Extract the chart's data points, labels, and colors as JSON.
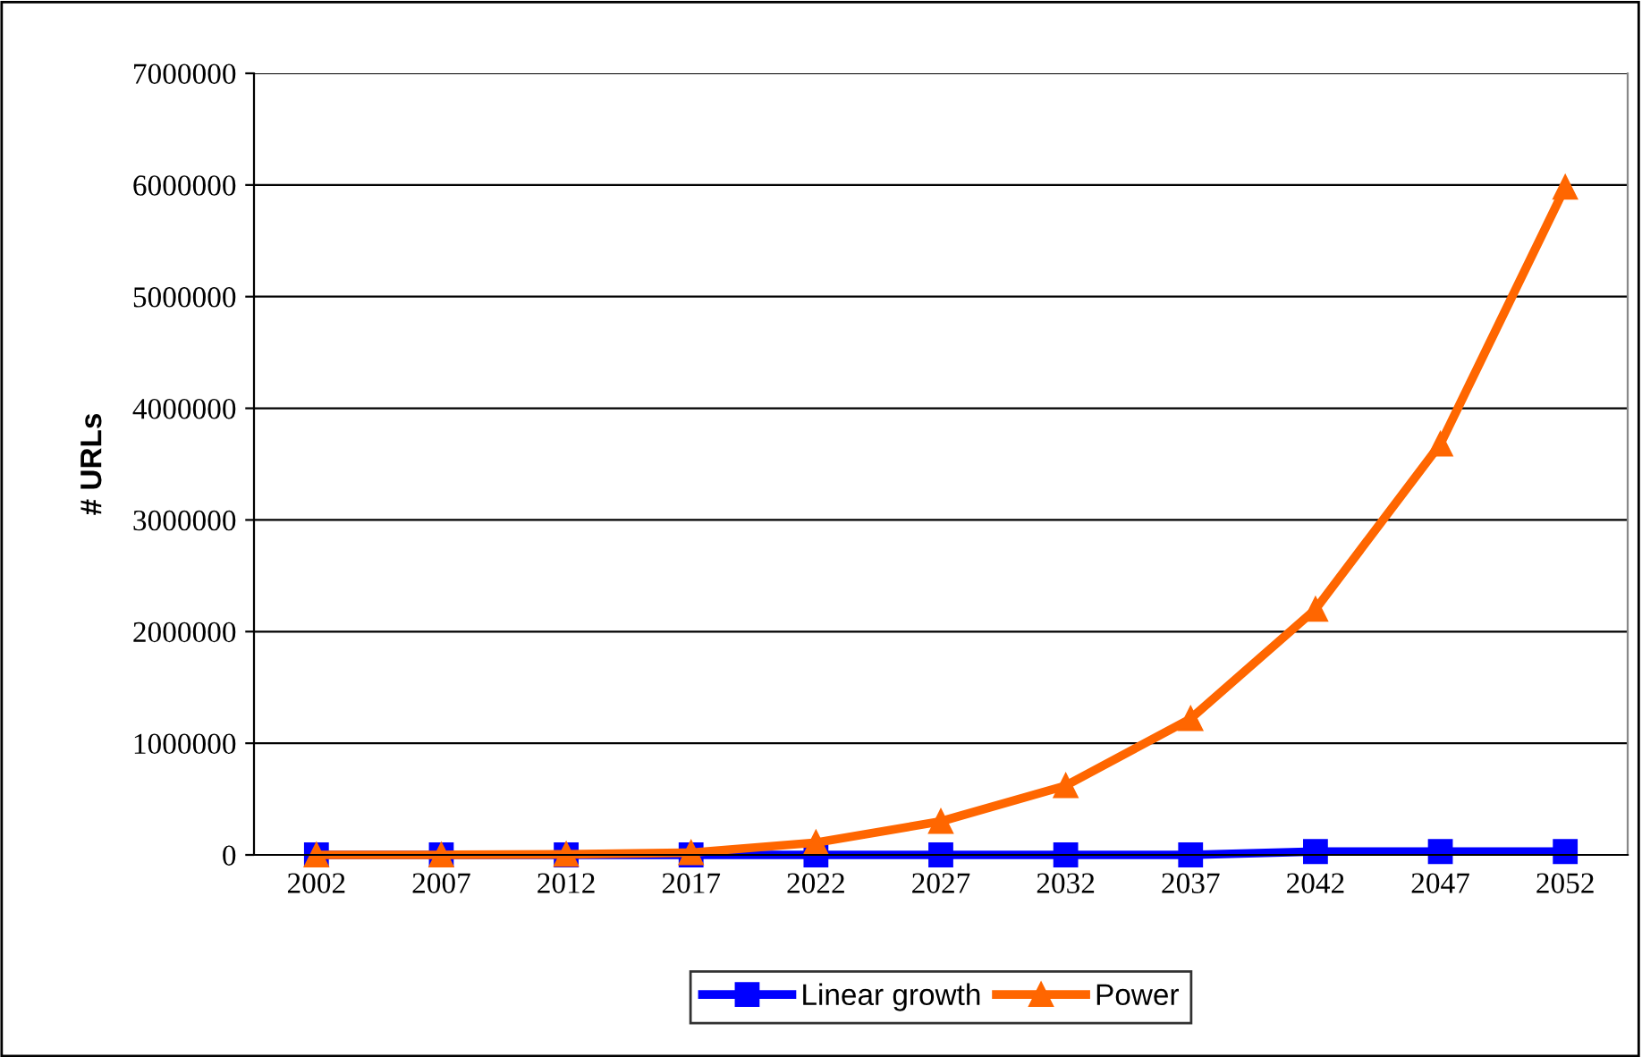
{
  "chart_data": {
    "type": "line",
    "ylabel": "# URLs",
    "categories": [
      "2002",
      "2007",
      "2012",
      "2017",
      "2022",
      "2027",
      "2032",
      "2037",
      "2042",
      "2047",
      "2052"
    ],
    "series": [
      {
        "name": "Linear growth",
        "color": "#0000ff",
        "marker": "square",
        "values": [
          0,
          0,
          0,
          0,
          0,
          0,
          0,
          0,
          30000,
          30000,
          30000
        ]
      },
      {
        "name": "Power",
        "color": "#ff6600",
        "marker": "triangle",
        "values": [
          0,
          0,
          5000,
          20000,
          110000,
          300000,
          620000,
          1220000,
          2200000,
          3680000,
          5980000
        ]
      }
    ],
    "ylim": [
      0,
      7000000
    ],
    "yticks": [
      0,
      1000000,
      2000000,
      3000000,
      4000000,
      5000000,
      6000000,
      7000000
    ],
    "grid": "y",
    "legend": "bottom",
    "line_style": "solid"
  }
}
